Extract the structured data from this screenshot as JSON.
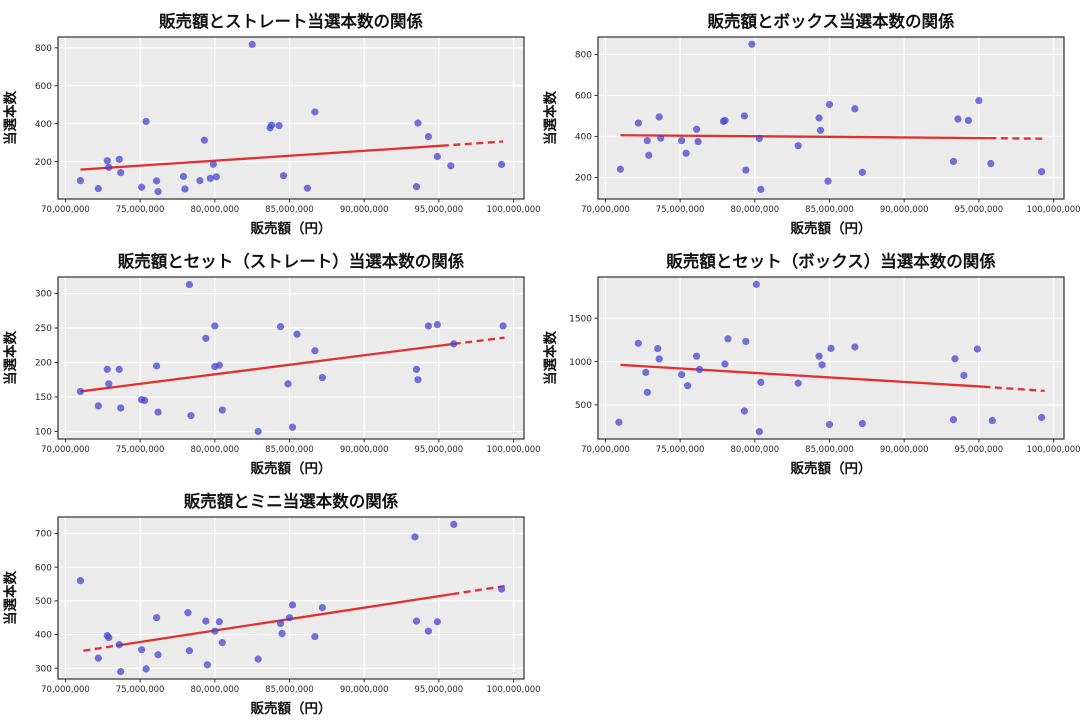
{
  "figure": {
    "background": "#ffffff",
    "panel_background": "#ebebeb",
    "grid_color": "#ffffff",
    "spine_color": "#2e2e2e",
    "point_color": "#4646cf",
    "point_opacity": 0.75,
    "trend_color": "#e3302f",
    "text_color": "#111111",
    "tick_text_color": "#262626"
  },
  "chart_data": [
    {
      "type": "scatter",
      "title": "販売額とストレート当選本数の関係",
      "xlabel": "販売額（円）",
      "ylabel": "当選本数",
      "x_unit_note": "values in millions of yen",
      "xlim": [
        69.5,
        100.7
      ],
      "ylim": [
        3,
        857
      ],
      "xtick_values": [
        70,
        75,
        80,
        85,
        90,
        95,
        100
      ],
      "xtick_labels": [
        "70,000,000",
        "75,000,000",
        "80,000,000",
        "85,000,000",
        "90,000,000",
        "95,000,000",
        "100,000,000"
      ],
      "ytick_values": [
        200,
        400,
        600,
        800
      ],
      "ytick_labels": [
        "200",
        "400",
        "600",
        "800"
      ],
      "points": [
        [
          71.0,
          100
        ],
        [
          72.2,
          58
        ],
        [
          72.8,
          205
        ],
        [
          72.9,
          170
        ],
        [
          73.6,
          212
        ],
        [
          73.7,
          142
        ],
        [
          75.1,
          65
        ],
        [
          75.4,
          412
        ],
        [
          76.1,
          98
        ],
        [
          76.2,
          42
        ],
        [
          77.9,
          122
        ],
        [
          78.0,
          56
        ],
        [
          79.0,
          100
        ],
        [
          79.3,
          313
        ],
        [
          79.7,
          112
        ],
        [
          79.9,
          186
        ],
        [
          80.1,
          120
        ],
        [
          82.5,
          818
        ],
        [
          83.7,
          378
        ],
        [
          83.8,
          392
        ],
        [
          84.3,
          390
        ],
        [
          84.6,
          126
        ],
        [
          86.2,
          60
        ],
        [
          86.7,
          462
        ],
        [
          93.5,
          68
        ],
        [
          93.6,
          403
        ],
        [
          94.3,
          332
        ],
        [
          94.9,
          227
        ],
        [
          95.8,
          178
        ],
        [
          99.2,
          185
        ]
      ],
      "trend_segments": [
        {
          "x1": 71.0,
          "y1": 158,
          "x2": 95.2,
          "y2": 284,
          "dashed": false
        },
        {
          "x1": 95.2,
          "y1": 284,
          "x2": 99.3,
          "y2": 306,
          "dashed": true
        }
      ]
    },
    {
      "type": "scatter",
      "title": "販売額とボックス当選本数の関係",
      "xlabel": "販売額（円）",
      "ylabel": "当選本数",
      "x_unit_note": "values in millions of yen",
      "xlim": [
        69.5,
        100.7
      ],
      "ylim": [
        95,
        885
      ],
      "xtick_values": [
        70,
        75,
        80,
        85,
        90,
        95,
        100
      ],
      "xtick_labels": [
        "70,000,000",
        "75,000,000",
        "80,000,000",
        "85,000,000",
        "90,000,000",
        "95,000,000",
        "100,000,000"
      ],
      "ytick_values": [
        200,
        400,
        600,
        800
      ],
      "ytick_labels": [
        "200",
        "400",
        "600",
        "800"
      ],
      "points": [
        [
          71.0,
          240
        ],
        [
          72.2,
          465
        ],
        [
          72.8,
          380
        ],
        [
          72.9,
          308
        ],
        [
          73.6,
          495
        ],
        [
          73.7,
          392
        ],
        [
          75.1,
          380
        ],
        [
          75.4,
          318
        ],
        [
          76.1,
          435
        ],
        [
          76.2,
          375
        ],
        [
          77.9,
          473
        ],
        [
          78.0,
          478
        ],
        [
          79.3,
          500
        ],
        [
          79.4,
          236
        ],
        [
          79.8,
          850
        ],
        [
          80.3,
          390
        ],
        [
          80.4,
          142
        ],
        [
          82.9,
          355
        ],
        [
          84.3,
          490
        ],
        [
          84.4,
          430
        ],
        [
          84.9,
          182
        ],
        [
          85.0,
          556
        ],
        [
          86.7,
          535
        ],
        [
          87.2,
          225
        ],
        [
          93.3,
          278
        ],
        [
          93.6,
          485
        ],
        [
          94.3,
          478
        ],
        [
          95.0,
          575
        ],
        [
          95.8,
          268
        ],
        [
          99.2,
          228
        ]
      ],
      "trend_segments": [
        {
          "x1": 71.0,
          "y1": 406,
          "x2": 95.7,
          "y2": 392,
          "dashed": false
        },
        {
          "x1": 95.7,
          "y1": 392,
          "x2": 99.3,
          "y2": 389,
          "dashed": true
        }
      ]
    },
    {
      "type": "scatter",
      "title": "販売額とセット（ストレート）当選本数の関係",
      "xlabel": "販売額（円）",
      "ylabel": "当選本数",
      "x_unit_note": "values in millions of yen",
      "xlim": [
        69.5,
        100.7
      ],
      "ylim": [
        89,
        324
      ],
      "xtick_values": [
        70,
        75,
        80,
        85,
        90,
        95,
        100
      ],
      "xtick_labels": [
        "70,000,000",
        "75,000,000",
        "80,000,000",
        "85,000,000",
        "90,000,000",
        "95,000,000",
        "100,000,000"
      ],
      "ytick_values": [
        100,
        150,
        200,
        250,
        300
      ],
      "ytick_labels": [
        "100",
        "150",
        "200",
        "250",
        "300"
      ],
      "points": [
        [
          71.0,
          158
        ],
        [
          72.2,
          137
        ],
        [
          72.8,
          190
        ],
        [
          72.9,
          169
        ],
        [
          73.6,
          190
        ],
        [
          73.7,
          134
        ],
        [
          75.1,
          146
        ],
        [
          75.3,
          145
        ],
        [
          76.1,
          195
        ],
        [
          76.2,
          128
        ],
        [
          78.3,
          313
        ],
        [
          78.4,
          123
        ],
        [
          79.4,
          235
        ],
        [
          80.0,
          253
        ],
        [
          80.0,
          194
        ],
        [
          80.3,
          196
        ],
        [
          80.5,
          131
        ],
        [
          82.9,
          100
        ],
        [
          84.4,
          252
        ],
        [
          84.9,
          169
        ],
        [
          85.2,
          106
        ],
        [
          85.5,
          241
        ],
        [
          86.7,
          217
        ],
        [
          87.2,
          178
        ],
        [
          93.5,
          190
        ],
        [
          93.6,
          175
        ],
        [
          94.3,
          253
        ],
        [
          94.9,
          255
        ],
        [
          96.0,
          227
        ],
        [
          99.3,
          253
        ]
      ],
      "trend_segments": [
        {
          "x1": 71.0,
          "y1": 158,
          "x2": 96.0,
          "y2": 227,
          "dashed": false
        },
        {
          "x1": 96.0,
          "y1": 227,
          "x2": 99.4,
          "y2": 236,
          "dashed": true
        }
      ]
    },
    {
      "type": "scatter",
      "title": "販売額とセット（ボックス）当選本数の関係",
      "xlabel": "販売額（円）",
      "ylabel": "当選本数",
      "x_unit_note": "values in millions of yen",
      "xlim": [
        69.5,
        100.7
      ],
      "ylim": [
        107,
        1975
      ],
      "xtick_values": [
        70,
        75,
        80,
        85,
        90,
        95,
        100
      ],
      "xtick_labels": [
        "70,000,000",
        "75,000,000",
        "80,000,000",
        "85,000,000",
        "90,000,000",
        "95,000,000",
        "100,000,000"
      ],
      "ytick_values": [
        500,
        1000,
        1500
      ],
      "ytick_labels": [
        "500",
        "1000",
        "1500"
      ],
      "points": [
        [
          70.9,
          300
        ],
        [
          72.2,
          1210
        ],
        [
          72.7,
          875
        ],
        [
          72.8,
          645
        ],
        [
          73.5,
          1150
        ],
        [
          73.6,
          1030
        ],
        [
          75.1,
          850
        ],
        [
          75.5,
          722
        ],
        [
          76.1,
          1062
        ],
        [
          76.3,
          908
        ],
        [
          78.0,
          972
        ],
        [
          78.2,
          1262
        ],
        [
          79.3,
          430
        ],
        [
          79.4,
          1232
        ],
        [
          80.1,
          1890
        ],
        [
          80.3,
          192
        ],
        [
          80.4,
          760
        ],
        [
          82.9,
          750
        ],
        [
          84.3,
          1062
        ],
        [
          84.5,
          962
        ],
        [
          85.0,
          275
        ],
        [
          85.1,
          1152
        ],
        [
          86.7,
          1168
        ],
        [
          87.2,
          285
        ],
        [
          93.3,
          330
        ],
        [
          93.4,
          1032
        ],
        [
          94.0,
          840
        ],
        [
          94.9,
          1145
        ],
        [
          95.9,
          320
        ],
        [
          99.2,
          355
        ]
      ],
      "trend_segments": [
        {
          "x1": 71.0,
          "y1": 962,
          "x2": 95.3,
          "y2": 710,
          "dashed": false
        },
        {
          "x1": 95.3,
          "y1": 710,
          "x2": 99.4,
          "y2": 662,
          "dashed": true
        }
      ]
    },
    {
      "type": "scatter",
      "title": "販売額とミニ当選本数の関係",
      "xlabel": "販売額（円）",
      "ylabel": "当選本数",
      "x_unit_note": "values in millions of yen",
      "xlim": [
        69.5,
        100.7
      ],
      "ylim": [
        268,
        749
      ],
      "xtick_values": [
        70,
        75,
        80,
        85,
        90,
        95,
        100
      ],
      "xtick_labels": [
        "70,000,000",
        "75,000,000",
        "80,000,000",
        "85,000,000",
        "90,000,000",
        "95,000,000",
        "100,000,000"
      ],
      "ytick_values": [
        300,
        400,
        500,
        600,
        700
      ],
      "ytick_labels": [
        "300",
        "400",
        "500",
        "600",
        "700"
      ],
      "points": [
        [
          71.0,
          560
        ],
        [
          72.2,
          330
        ],
        [
          72.8,
          397
        ],
        [
          72.9,
          391
        ],
        [
          73.6,
          370
        ],
        [
          73.7,
          290
        ],
        [
          75.1,
          355
        ],
        [
          75.4,
          298
        ],
        [
          76.1,
          450
        ],
        [
          76.2,
          340
        ],
        [
          78.2,
          465
        ],
        [
          78.3,
          352
        ],
        [
          79.4,
          440
        ],
        [
          79.5,
          310
        ],
        [
          80.0,
          410
        ],
        [
          80.3,
          438
        ],
        [
          80.5,
          376
        ],
        [
          82.9,
          327
        ],
        [
          84.4,
          433
        ],
        [
          84.5,
          403
        ],
        [
          85.0,
          450
        ],
        [
          85.2,
          488
        ],
        [
          86.7,
          394
        ],
        [
          87.2,
          480
        ],
        [
          93.4,
          690
        ],
        [
          93.5,
          440
        ],
        [
          94.3,
          410
        ],
        [
          94.9,
          438
        ],
        [
          96.0,
          727
        ],
        [
          99.2,
          535
        ]
      ],
      "trend_segments": [
        {
          "x1": 71.2,
          "y1": 352,
          "x2": 73.4,
          "y2": 367,
          "dashed": true
        },
        {
          "x1": 73.4,
          "y1": 367,
          "x2": 95.9,
          "y2": 520,
          "dashed": false
        },
        {
          "x1": 95.9,
          "y1": 520,
          "x2": 99.4,
          "y2": 544,
          "dashed": true
        }
      ]
    }
  ]
}
